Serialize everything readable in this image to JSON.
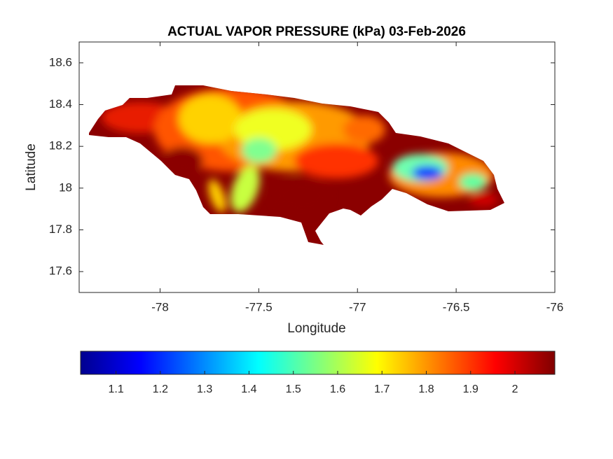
{
  "chart_data": {
    "type": "map",
    "title": "ACTUAL VAPOR PRESSURE (kPa) 03-Feb-2026",
    "xlabel": "Longitude",
    "ylabel": "Latitude",
    "xlim": [
      -78.41,
      -76
    ],
    "xticks": [
      -78,
      -77.5,
      -77,
      -76.5,
      -76
    ],
    "ylim": [
      17.5,
      18.7
    ],
    "yticks": [
      17.6,
      17.8,
      18,
      18.2,
      18.4,
      18.6
    ],
    "colorbar": {
      "colormap": "jet",
      "clim": [
        1.02,
        2.09
      ],
      "ticks": [
        1.1,
        1.2,
        1.3,
        1.4,
        1.5,
        1.6,
        1.7,
        1.8,
        1.9,
        2
      ]
    }
  }
}
